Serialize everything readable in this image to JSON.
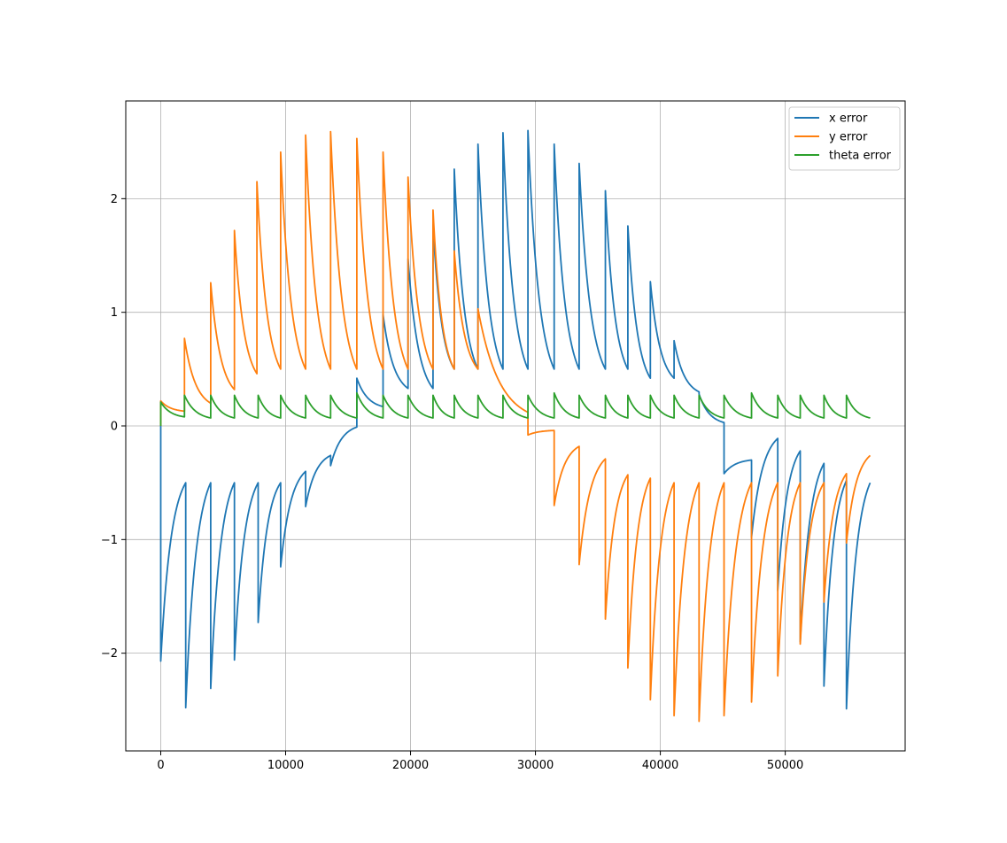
{
  "chart_data": {
    "type": "line",
    "title": "",
    "xlabel": "",
    "ylabel": "",
    "xlim": [
      -2800,
      59600
    ],
    "ylim": [
      -2.86,
      2.86
    ],
    "xticks": [
      0,
      10000,
      20000,
      30000,
      40000,
      50000
    ],
    "yticks": [
      -2,
      -1,
      0,
      1,
      2
    ],
    "xtick_labels": [
      "0",
      "10000",
      "20000",
      "30000",
      "40000",
      "50000"
    ],
    "ytick_labels": [
      "−2",
      "−1",
      "0",
      "1",
      "2"
    ],
    "grid": true,
    "legend_position": "top-right",
    "x_end": 56800,
    "segment_length": 2000,
    "series": [
      {
        "name": "x error",
        "color": "#1f77b4",
        "segment_boundaries": [
          0,
          2000,
          4000,
          5900,
          7800,
          9600,
          11600,
          13600,
          15700,
          17800,
          19800,
          21800,
          23500,
          25400,
          27400,
          29400,
          31500,
          33500,
          35600,
          37400,
          39200,
          41100,
          43100,
          45100,
          47300,
          49400,
          51200,
          53100,
          54900
        ],
        "segment_starts": [
          -2.07,
          -2.48,
          -2.31,
          -2.06,
          -1.73,
          -1.24,
          -0.71,
          -0.35,
          0.42,
          0.98,
          1.47,
          1.77,
          2.26,
          2.48,
          2.58,
          2.6,
          2.48,
          2.31,
          2.07,
          1.76,
          1.27,
          0.75,
          0.28,
          -0.42,
          -0.98,
          -1.45,
          -1.9,
          -2.29,
          -2.49
        ],
        "segment_ends": [
          -0.5,
          -0.5,
          -0.5,
          -0.5,
          -0.5,
          -0.4,
          -0.26,
          -0.01,
          0.17,
          0.33,
          0.33,
          0.5,
          0.5,
          0.5,
          0.5,
          0.5,
          0.5,
          0.5,
          0.5,
          0.42,
          0.42,
          0.3,
          0.03,
          -0.3,
          -0.11,
          -0.22,
          -0.33,
          -0.48,
          -0.5
        ]
      },
      {
        "name": "y error",
        "color": "#ff7f0e",
        "segment_boundaries": [
          0,
          1900,
          4000,
          5900,
          7700,
          9600,
          11600,
          13600,
          15700,
          17800,
          19800,
          21800,
          23500,
          25400,
          29400,
          31500,
          33500,
          35600,
          37400,
          39200,
          41100,
          43100,
          45100,
          47300,
          49400,
          51200,
          53100,
          54900
        ],
        "segment_starts": [
          0.22,
          0.77,
          1.26,
          1.72,
          2.15,
          2.41,
          2.56,
          2.59,
          2.53,
          2.41,
          2.19,
          1.9,
          1.54,
          1.03,
          -0.08,
          -0.7,
          -1.22,
          -1.7,
          -2.13,
          -2.41,
          -2.55,
          -2.6,
          -2.55,
          -2.43,
          -2.2,
          -1.92,
          -1.55,
          -1.03
        ],
        "segment_ends": [
          0.13,
          0.2,
          0.32,
          0.46,
          0.5,
          0.5,
          0.5,
          0.5,
          0.5,
          0.5,
          0.5,
          0.5,
          0.5,
          0.12,
          -0.04,
          -0.18,
          -0.29,
          -0.43,
          -0.46,
          -0.5,
          -0.5,
          -0.5,
          -0.5,
          -0.5,
          -0.5,
          -0.5,
          -0.42,
          -0.26
        ]
      },
      {
        "name": "theta error",
        "color": "#2ca02c",
        "segment_boundaries": [
          0,
          1900,
          4000,
          5900,
          7800,
          9600,
          11600,
          13600,
          15700,
          17800,
          19800,
          21800,
          23500,
          25400,
          27400,
          29400,
          31500,
          33500,
          35600,
          37400,
          39200,
          41100,
          43100,
          45100,
          47300,
          49400,
          51200,
          53100,
          54900
        ],
        "segment_starts": [
          0.21,
          0.27,
          0.27,
          0.27,
          0.27,
          0.27,
          0.27,
          0.27,
          0.29,
          0.27,
          0.27,
          0.27,
          0.27,
          0.27,
          0.27,
          0.27,
          0.29,
          0.27,
          0.27,
          0.27,
          0.27,
          0.27,
          0.27,
          0.27,
          0.29,
          0.27,
          0.27,
          0.27,
          0.27
        ],
        "segment_ends": [
          0.08,
          0.07,
          0.07,
          0.07,
          0.07,
          0.07,
          0.07,
          0.07,
          0.07,
          0.07,
          0.07,
          0.07,
          0.07,
          0.07,
          0.07,
          0.07,
          0.07,
          0.07,
          0.07,
          0.07,
          0.07,
          0.07,
          0.07,
          0.07,
          0.07,
          0.07,
          0.07,
          0.07,
          0.07
        ]
      }
    ]
  }
}
